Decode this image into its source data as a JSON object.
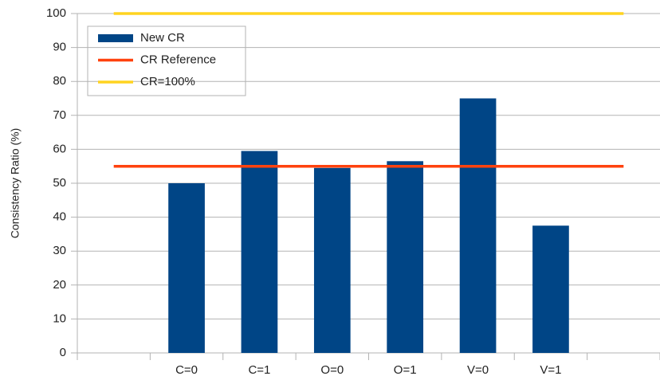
{
  "chart_data": {
    "type": "bar",
    "y_label": "Consistency Ratio (%)",
    "categories": [
      null,
      "C=0",
      "C=1",
      "O=0",
      "O=1",
      "V=0",
      "V=1",
      null
    ],
    "series": [
      {
        "name": "New CR",
        "type": "bar",
        "color": "#004586",
        "values": [
          null,
          50,
          59.5,
          54.5,
          56.5,
          75,
          37.5,
          null
        ]
      },
      {
        "name": "CR Reference",
        "type": "line",
        "color": "#ff420e",
        "values": [
          55,
          55,
          55,
          55,
          55,
          55,
          55,
          55
        ]
      },
      {
        "name": "CR=100%",
        "type": "line",
        "color": "#ffd320",
        "values": [
          100,
          100,
          100,
          100,
          100,
          100,
          100,
          100
        ]
      }
    ],
    "ylim": [
      0,
      100
    ],
    "yticks": [
      0,
      10,
      20,
      30,
      40,
      50,
      60,
      70,
      80,
      90,
      100
    ],
    "grid": true,
    "legend": "upper left"
  }
}
